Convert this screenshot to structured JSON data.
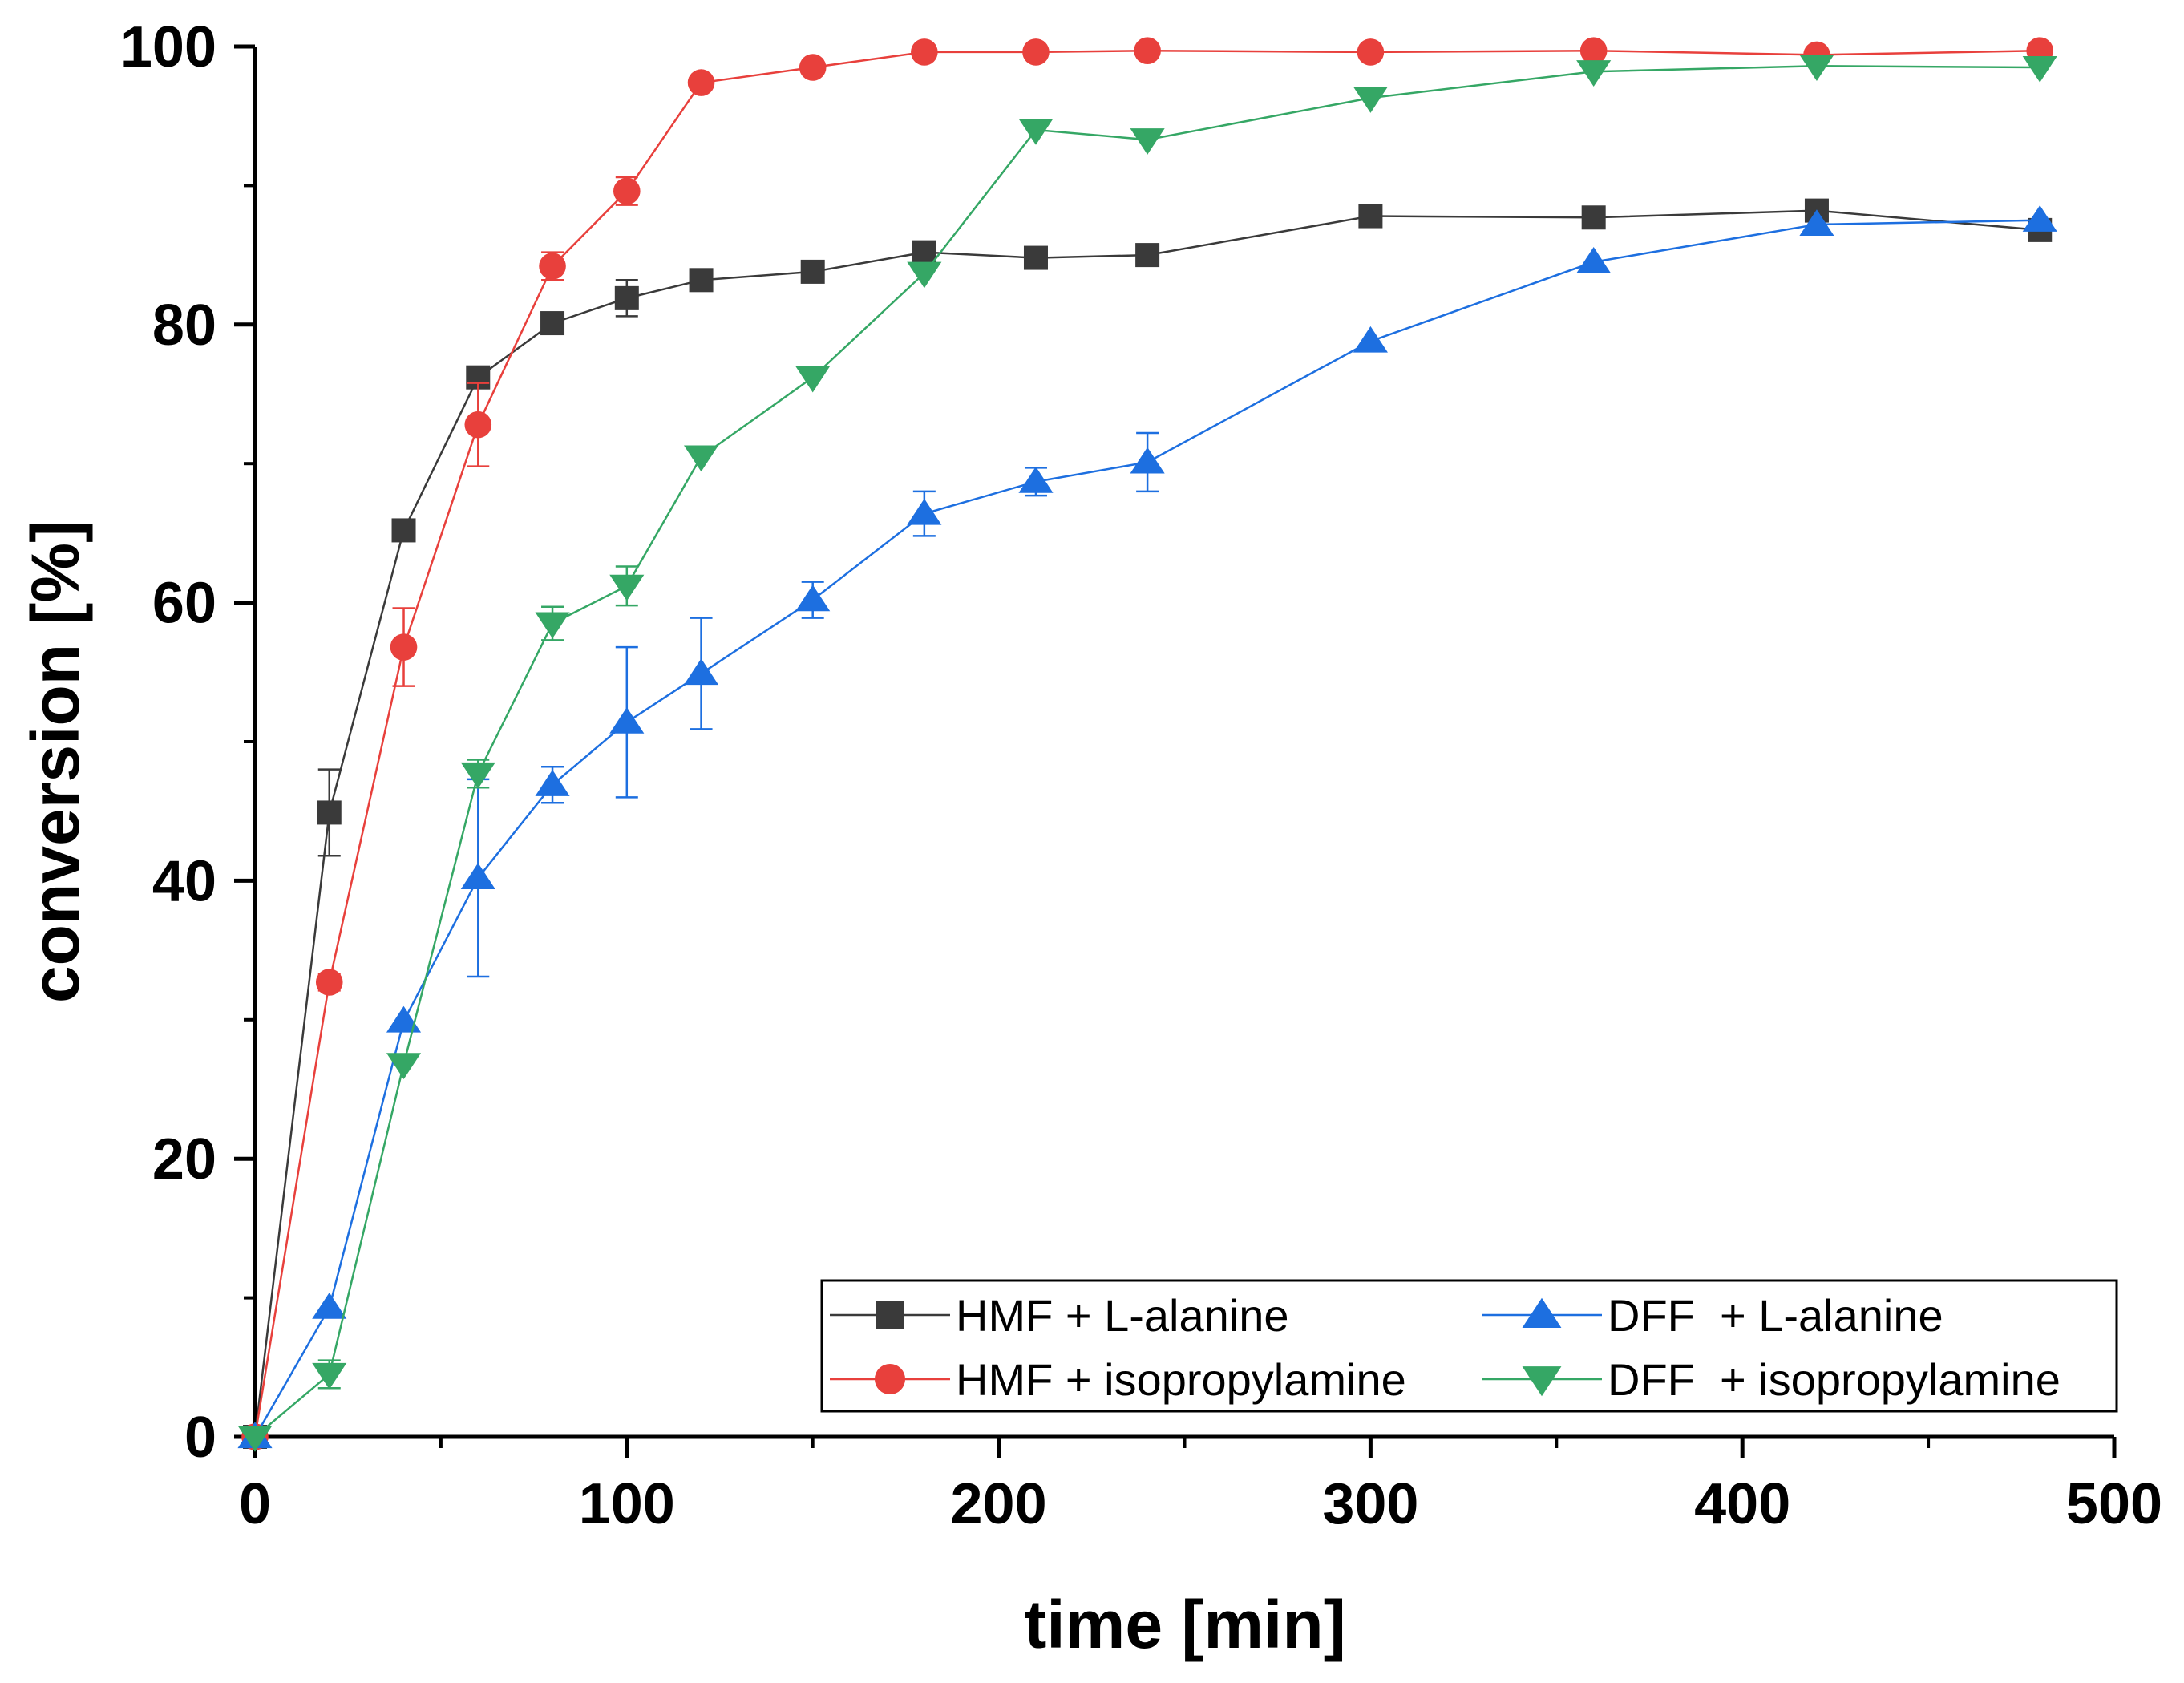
{
  "chart_data": {
    "type": "line",
    "title": "",
    "xlabel": "time [min]",
    "ylabel": "conversion [%]",
    "xlim": [
      0,
      500
    ],
    "ylim": [
      0,
      100
    ],
    "xticks": [
      0,
      100,
      200,
      300,
      400,
      500
    ],
    "yticks": [
      0,
      20,
      40,
      60,
      80,
      100
    ],
    "grid": false,
    "legend": {
      "position": "bottom-right",
      "columns": 2
    },
    "series": [
      {
        "name": "HMF + L-alanine",
        "marker": "square",
        "color": "#3a3a3a",
        "points": [
          [
            0,
            0
          ],
          [
            20,
            44.9
          ],
          [
            40,
            65.2
          ],
          [
            60,
            76.2
          ],
          [
            80,
            80.1
          ],
          [
            100,
            81.9
          ],
          [
            120,
            83.2
          ],
          [
            150,
            83.8
          ],
          [
            180,
            85.2
          ],
          [
            210,
            84.8
          ],
          [
            240,
            85.0
          ],
          [
            300,
            87.8
          ],
          [
            360,
            87.7
          ],
          [
            420,
            88.2
          ],
          [
            480,
            86.8
          ]
        ],
        "errors": [
          0,
          3.1,
          0,
          0,
          0,
          1.3,
          0,
          0,
          0,
          0,
          0,
          0,
          0,
          0,
          0
        ]
      },
      {
        "name": "HMF + isopropylamine",
        "marker": "circle",
        "color": "#e8403c",
        "points": [
          [
            0,
            0
          ],
          [
            20,
            32.7
          ],
          [
            40,
            56.8
          ],
          [
            60,
            72.8
          ],
          [
            80,
            84.2
          ],
          [
            100,
            89.6
          ],
          [
            120,
            97.4
          ],
          [
            150,
            98.5
          ],
          [
            180,
            99.6
          ],
          [
            210,
            99.6
          ],
          [
            240,
            99.7
          ],
          [
            300,
            99.6
          ],
          [
            360,
            99.7
          ],
          [
            420,
            99.4
          ],
          [
            480,
            99.7
          ]
        ],
        "errors": [
          0,
          0.6,
          2.8,
          3.0,
          1.0,
          1.0,
          0,
          0,
          0,
          0,
          0,
          0,
          0,
          0,
          0
        ]
      },
      {
        "name": "DFF  + L-alanine",
        "marker": "triangle-up",
        "color": "#1d6fe0",
        "points": [
          [
            0,
            0
          ],
          [
            20,
            9.3
          ],
          [
            40,
            29.9
          ],
          [
            60,
            40.2
          ],
          [
            80,
            46.9
          ],
          [
            100,
            51.4
          ],
          [
            120,
            54.9
          ],
          [
            150,
            60.2
          ],
          [
            180,
            66.4
          ],
          [
            210,
            68.7
          ],
          [
            240,
            70.1
          ],
          [
            300,
            78.8
          ],
          [
            360,
            84.5
          ],
          [
            420,
            87.2
          ],
          [
            480,
            87.5
          ]
        ],
        "errors": [
          0,
          0,
          0,
          7.1,
          1.3,
          5.4,
          4.0,
          1.3,
          1.6,
          1.0,
          2.1,
          0,
          0,
          0,
          0
        ]
      },
      {
        "name": "DFF  + isopropylamine",
        "marker": "triangle-down",
        "color": "#35a765",
        "points": [
          [
            0,
            0
          ],
          [
            20,
            4.5
          ],
          [
            40,
            26.8
          ],
          [
            60,
            47.7
          ],
          [
            80,
            58.5
          ],
          [
            100,
            61.2
          ],
          [
            120,
            70.5
          ],
          [
            150,
            76.2
          ],
          [
            180,
            83.7
          ],
          [
            210,
            94.0
          ],
          [
            240,
            93.3
          ],
          [
            300,
            96.3
          ],
          [
            360,
            98.2
          ],
          [
            420,
            98.6
          ],
          [
            480,
            98.5
          ]
        ],
        "errors": [
          0,
          1.0,
          0,
          1.0,
          1.2,
          1.4,
          0,
          0,
          0,
          0,
          0,
          0,
          0,
          0,
          0
        ]
      }
    ]
  }
}
